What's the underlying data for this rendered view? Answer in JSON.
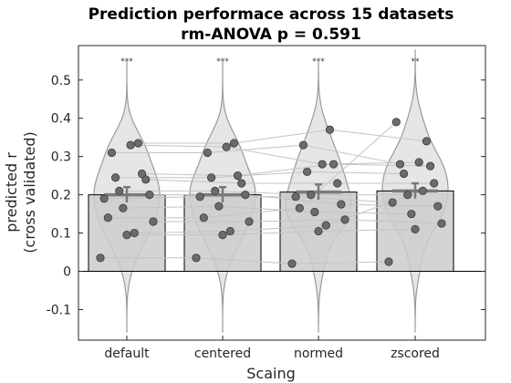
{
  "chart_data": {
    "type": "bar",
    "title": "Prediction performace across 15 datasets",
    "subtitle": "rm-ANOVA p = 0.591",
    "xlabel": "Scaing",
    "ylabel": "predicted r",
    "ylabel_line2": "(cross validated)",
    "ylim": [
      -0.18,
      0.59
    ],
    "yticks": [
      -0.1,
      0,
      0.1,
      0.2,
      0.3,
      0.4,
      0.5
    ],
    "ytick_labels": [
      "-0.1",
      "0",
      "0.1",
      "0.2",
      "0.3",
      "0.4",
      "0.5"
    ],
    "categories": [
      "default",
      "centered",
      "normed",
      "zscored"
    ],
    "bar_values": [
      0.2,
      0.2,
      0.207,
      0.21
    ],
    "significance": [
      "***",
      "***",
      "***",
      "**"
    ],
    "violin_range": [
      [
        -0.16,
        0.55
      ],
      [
        -0.16,
        0.55
      ],
      [
        -0.16,
        0.55
      ],
      [
        -0.16,
        0.58
      ]
    ],
    "points": [
      [
        0.035,
        0.095,
        0.13,
        0.165,
        0.2,
        0.21,
        0.24,
        0.245,
        0.255,
        0.31,
        0.335,
        0.14,
        0.1,
        0.19,
        0.33
      ],
      [
        0.035,
        0.095,
        0.13,
        0.17,
        0.2,
        0.21,
        0.23,
        0.245,
        0.25,
        0.31,
        0.335,
        0.14,
        0.105,
        0.195,
        0.325
      ],
      [
        0.02,
        0.105,
        0.135,
        0.155,
        0.175,
        0.2,
        0.23,
        0.26,
        0.28,
        0.33,
        0.37,
        0.165,
        0.12,
        0.195,
        0.28
      ],
      [
        0.025,
        0.11,
        0.125,
        0.15,
        0.17,
        0.2,
        0.23,
        0.255,
        0.275,
        0.28,
        0.34,
        0.39,
        0.21,
        0.18,
        0.285
      ]
    ],
    "colors": {
      "bar_fill": "#cccccc",
      "violin_fill": "#e6e6e6",
      "violin_edge": "#9a9a9a",
      "point": "#6b6b6b",
      "line": "#c4c4c4",
      "mean_line": "#7a7a7a"
    }
  }
}
